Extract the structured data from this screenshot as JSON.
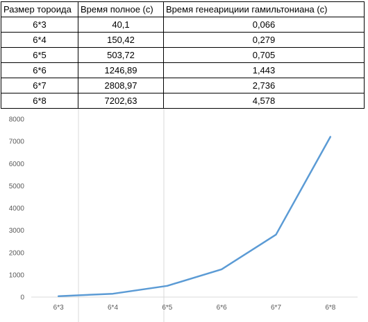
{
  "table": {
    "headers": [
      "Размер тороида",
      "Время полное (с)",
      "Время генеарициии гамильтониана (с)"
    ],
    "rows": [
      [
        "6*3",
        "40,1",
        "0,066"
      ],
      [
        "6*4",
        "150,42",
        "0,279"
      ],
      [
        "6*5",
        "503,72",
        "0,705"
      ],
      [
        "6*6",
        "1246,89",
        "1,443"
      ],
      [
        "6*7",
        "2808,97",
        "2,736"
      ],
      [
        "6*8",
        "7202,63",
        "4,578"
      ]
    ]
  },
  "chart_data": {
    "type": "line",
    "categories": [
      "6*3",
      "6*4",
      "6*5",
      "6*6",
      "6*7",
      "6*8"
    ],
    "series": [
      {
        "values": [
          40.1,
          150.42,
          503.72,
          1246.89,
          2808.97,
          7202.63
        ],
        "color": "#5b9bd5"
      }
    ],
    "yticks": [
      0,
      1000,
      2000,
      3000,
      4000,
      5000,
      6000,
      7000,
      8000
    ],
    "ylim": [
      0,
      8000
    ],
    "grid": false,
    "legend": "none"
  }
}
